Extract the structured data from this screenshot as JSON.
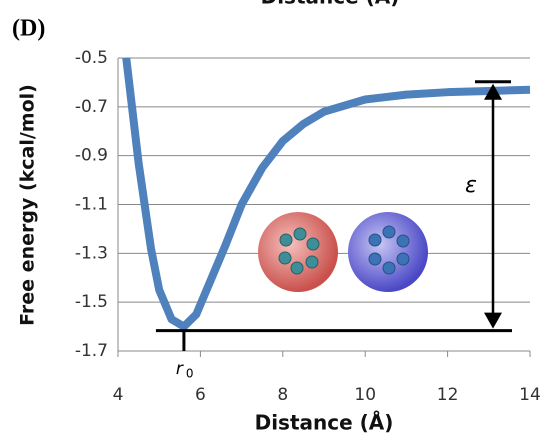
{
  "panel_label": "(D)",
  "cropped_caption": "Distance (Å)",
  "chart_data": {
    "type": "line",
    "x_label": "Distance (Å)",
    "y_label": "Free energy (kcal/mol)",
    "x": [
      4.2,
      4.5,
      4.8,
      5.0,
      5.3,
      5.6,
      5.9,
      6.2,
      6.6,
      7,
      7.5,
      8,
      8.5,
      9,
      10,
      11,
      12,
      13,
      14
    ],
    "series": [
      {
        "color": "#4f81bd",
        "values": [
          -0.5,
          -0.93,
          -1.28,
          -1.45,
          -1.57,
          -1.6,
          -1.55,
          -1.43,
          -1.27,
          -1.1,
          -0.95,
          -0.84,
          -0.77,
          -0.72,
          -0.67,
          -0.65,
          -0.64,
          -0.635,
          -0.63
        ]
      }
    ],
    "xlim": [
      4,
      14
    ],
    "xticks": [
      4,
      6,
      8,
      10,
      12,
      14
    ],
    "ylim": [
      -1.7,
      -0.5
    ],
    "yticks": [
      -1.7,
      -1.5,
      -1.3,
      -1.1,
      -0.9,
      -0.7,
      -0.5
    ],
    "grid": true,
    "annotations": {
      "epsilon": "ε",
      "r": "r",
      "r_subscript": "0"
    }
  }
}
